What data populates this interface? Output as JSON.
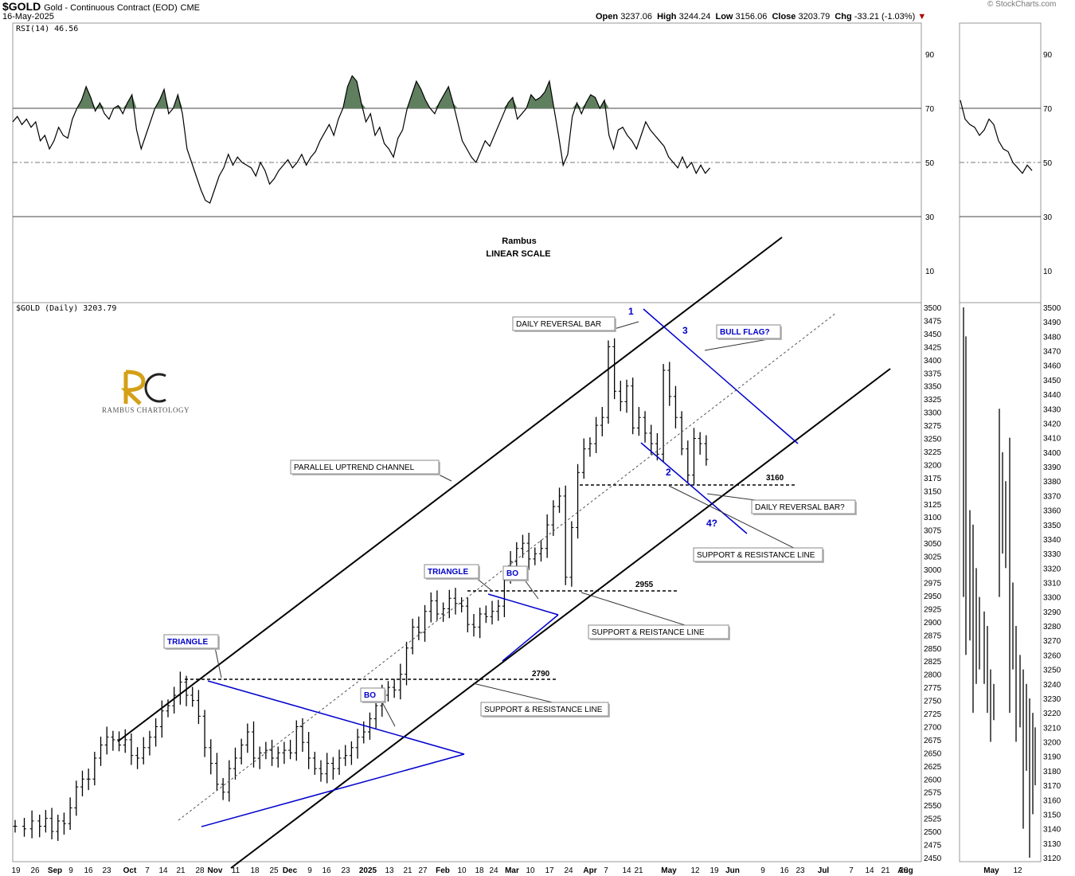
{
  "header": {
    "symbol": "$GOLD",
    "name": "Gold - Continuous Contract (EOD)",
    "exchange": "CME",
    "date": "16-May-2025",
    "open_label": "Open",
    "open": "3237.06",
    "high_label": "High",
    "high": "3244.24",
    "low_label": "Low",
    "low": "3156.06",
    "close_label": "Close",
    "close": "3203.79",
    "chg_label": "Chg",
    "chg": "-33.21 (-1.03%)",
    "credit": "© StockCharts.com"
  },
  "rsi_panel": {
    "legend": "RSI(14) 46.56",
    "ticks": [
      90,
      70,
      50,
      30,
      10
    ]
  },
  "price_panel": {
    "legend": "$GOLD (Daily) 3203.79"
  },
  "notes": {
    "author": "Rambus",
    "scale": "LINEAR SCALE"
  },
  "logo": {
    "caption": "RAMBUS CHARTOLOGY"
  },
  "chart_data": {
    "type": "ohlc",
    "main": {
      "y_ticks": [
        2450,
        2475,
        2500,
        2525,
        2550,
        2575,
        2600,
        2625,
        2650,
        2675,
        2700,
        2725,
        2750,
        2775,
        2800,
        2825,
        2850,
        2875,
        2900,
        2925,
        2950,
        2975,
        3000,
        3025,
        3050,
        3075,
        3100,
        3125,
        3150,
        3175,
        3200,
        3225,
        3250,
        3275,
        3300,
        3325,
        3350,
        3375,
        3400,
        3425,
        3450,
        3475,
        3500
      ],
      "ylim": [
        2450,
        3500
      ],
      "x_labels": [
        "19",
        "26",
        "Sep",
        "9",
        "16",
        "23",
        "Oct",
        "7",
        "14",
        "21",
        "28",
        "Nov",
        "11",
        "18",
        "25",
        "Dec",
        "9",
        "16",
        "23",
        "2025",
        "13",
        "21",
        "27",
        "Feb",
        "10",
        "18",
        "24",
        "Mar",
        "10",
        "17",
        "24",
        "Apr",
        "7",
        "14",
        "21",
        "May",
        "12",
        "19",
        "Jun",
        "9",
        "16",
        "23",
        "Jul",
        "7",
        "14",
        "21",
        "28",
        "Aug"
      ],
      "close_path": [
        [
          0,
          2510
        ],
        [
          6,
          2505
        ],
        [
          11,
          2520
        ],
        [
          16,
          2510
        ],
        [
          20,
          2525
        ],
        [
          24,
          2500
        ],
        [
          28,
          2520
        ],
        [
          32,
          2515
        ],
        [
          36,
          2545
        ],
        [
          40,
          2585
        ],
        [
          44,
          2600
        ],
        [
          48,
          2600
        ],
        [
          52,
          2640
        ],
        [
          56,
          2665
        ],
        [
          60,
          2680
        ],
        [
          64,
          2675
        ],
        [
          68,
          2665
        ],
        [
          72,
          2675
        ],
        [
          76,
          2645
        ],
        [
          80,
          2640
        ],
        [
          84,
          2660
        ],
        [
          88,
          2680
        ],
        [
          92,
          2700
        ],
        [
          96,
          2730
        ],
        [
          100,
          2740
        ],
        [
          104,
          2760
        ],
        [
          108,
          2785
        ],
        [
          112,
          2760
        ],
        [
          116,
          2750
        ],
        [
          120,
          2720
        ],
        [
          124,
          2660
        ],
        [
          128,
          2630
        ],
        [
          132,
          2590
        ],
        [
          136,
          2575
        ],
        [
          140,
          2620
        ],
        [
          144,
          2640
        ],
        [
          148,
          2665
        ],
        [
          152,
          2690
        ],
        [
          156,
          2640
        ],
        [
          160,
          2650
        ],
        [
          164,
          2655
        ],
        [
          168,
          2640
        ],
        [
          172,
          2650
        ],
        [
          176,
          2655
        ],
        [
          180,
          2650
        ],
        [
          184,
          2700
        ],
        [
          188,
          2670
        ],
        [
          192,
          2640
        ],
        [
          196,
          2620
        ],
        [
          200,
          2610
        ],
        [
          204,
          2630
        ],
        [
          208,
          2620
        ],
        [
          212,
          2640
        ],
        [
          216,
          2645
        ],
        [
          220,
          2660
        ],
        [
          224,
          2680
        ],
        [
          228,
          2690
        ],
        [
          232,
          2715
        ],
        [
          236,
          2740
        ],
        [
          240,
          2760
        ],
        [
          244,
          2775
        ],
        [
          248,
          2770
        ],
        [
          252,
          2800
        ],
        [
          256,
          2850
        ],
        [
          260,
          2890
        ],
        [
          264,
          2880
        ],
        [
          268,
          2920
        ],
        [
          272,
          2940
        ],
        [
          276,
          2915
        ],
        [
          280,
          2925
        ],
        [
          284,
          2945
        ],
        [
          288,
          2935
        ],
        [
          292,
          2930
        ],
        [
          296,
          2895
        ],
        [
          300,
          2890
        ],
        [
          304,
          2915
        ],
        [
          308,
          2910
        ],
        [
          312,
          2920
        ],
        [
          316,
          2930
        ],
        [
          320,
          2985
        ],
        [
          324,
          3015
        ],
        [
          328,
          3040
        ],
        [
          332,
          3050
        ],
        [
          336,
          3020
        ],
        [
          340,
          3030
        ],
        [
          344,
          3040
        ],
        [
          348,
          3085
        ],
        [
          352,
          3120
        ],
        [
          356,
          3140
        ],
        [
          360,
          2985
        ],
        [
          364,
          3080
        ],
        [
          368,
          3185
        ],
        [
          372,
          3230
        ],
        [
          376,
          3240
        ],
        [
          380,
          3275
        ],
        [
          384,
          3290
        ],
        [
          388,
          3425
        ],
        [
          392,
          3340
        ],
        [
          396,
          3320
        ],
        [
          400,
          3350
        ],
        [
          404,
          3270
        ],
        [
          408,
          3290
        ],
        [
          412,
          3260
        ],
        [
          416,
          3240
        ],
        [
          420,
          3220
        ],
        [
          424,
          3380
        ],
        [
          428,
          3330
        ],
        [
          432,
          3290
        ],
        [
          436,
          3230
        ],
        [
          440,
          3180
        ],
        [
          444,
          3250
        ],
        [
          448,
          3240
        ],
        [
          452,
          3210
        ]
      ],
      "annotations": [
        "DAILY REVERSAL BAR",
        "BULL FLAG?",
        "PARALLEL UPTREND CHANNEL",
        "DAILY REVERSAL BAR?",
        "SUPPORT & RESISTANCE LINE",
        "TRIANGLE",
        "BO",
        "SUPPORT & REISTANCE LINE",
        "TRIANGLE",
        "BO",
        "SUPPORT & RESISTANCE LINE"
      ],
      "level_labels": [
        "3160",
        "2955",
        "2790"
      ],
      "wave_labels": [
        "1",
        "2",
        "3",
        "4?"
      ]
    },
    "rsi": {
      "ylim": [
        0,
        100
      ],
      "levels": [
        30,
        50,
        70
      ],
      "values": [
        [
          0,
          65
        ],
        [
          3,
          67
        ],
        [
          6,
          64
        ],
        [
          9,
          66
        ],
        [
          12,
          63
        ],
        [
          15,
          65
        ],
        [
          18,
          58
        ],
        [
          21,
          60
        ],
        [
          24,
          55
        ],
        [
          27,
          58
        ],
        [
          30,
          63
        ],
        [
          33,
          60
        ],
        [
          36,
          59
        ],
        [
          39,
          66
        ],
        [
          42,
          70
        ],
        [
          45,
          73
        ],
        [
          48,
          78
        ],
        [
          51,
          74
        ],
        [
          54,
          69
        ],
        [
          57,
          72
        ],
        [
          60,
          68
        ],
        [
          63,
          66
        ],
        [
          66,
          70
        ],
        [
          69,
          71
        ],
        [
          72,
          68
        ],
        [
          75,
          72
        ],
        [
          78,
          75
        ],
        [
          81,
          62
        ],
        [
          84,
          55
        ],
        [
          87,
          60
        ],
        [
          90,
          65
        ],
        [
          93,
          70
        ],
        [
          96,
          73
        ],
        [
          99,
          77
        ],
        [
          102,
          68
        ],
        [
          105,
          70
        ],
        [
          108,
          75
        ],
        [
          111,
          68
        ],
        [
          114,
          55
        ],
        [
          117,
          50
        ],
        [
          120,
          45
        ],
        [
          123,
          40
        ],
        [
          126,
          36
        ],
        [
          129,
          35
        ],
        [
          132,
          40
        ],
        [
          135,
          45
        ],
        [
          138,
          48
        ],
        [
          141,
          53
        ],
        [
          144,
          49
        ],
        [
          147,
          52
        ],
        [
          150,
          50
        ],
        [
          153,
          49
        ],
        [
          156,
          48
        ],
        [
          159,
          45
        ],
        [
          162,
          50
        ],
        [
          165,
          47
        ],
        [
          168,
          42
        ],
        [
          171,
          44
        ],
        [
          174,
          47
        ],
        [
          177,
          49
        ],
        [
          180,
          51
        ],
        [
          183,
          48
        ],
        [
          186,
          50
        ],
        [
          189,
          53
        ],
        [
          192,
          49
        ],
        [
          195,
          52
        ],
        [
          198,
          54
        ],
        [
          201,
          58
        ],
        [
          204,
          61
        ],
        [
          207,
          64
        ],
        [
          210,
          60
        ],
        [
          213,
          66
        ],
        [
          216,
          70
        ],
        [
          219,
          78
        ],
        [
          222,
          82
        ],
        [
          225,
          80
        ],
        [
          228,
          72
        ],
        [
          231,
          65
        ],
        [
          234,
          68
        ],
        [
          237,
          60
        ],
        [
          240,
          63
        ],
        [
          243,
          57
        ],
        [
          246,
          55
        ],
        [
          249,
          52
        ],
        [
          252,
          59
        ],
        [
          255,
          62
        ],
        [
          258,
          70
        ],
        [
          261,
          75
        ],
        [
          264,
          80
        ],
        [
          267,
          77
        ],
        [
          270,
          73
        ],
        [
          273,
          70
        ],
        [
          276,
          68
        ],
        [
          279,
          72
        ],
        [
          282,
          75
        ],
        [
          285,
          78
        ],
        [
          288,
          72
        ],
        [
          291,
          65
        ],
        [
          294,
          58
        ],
        [
          297,
          55
        ],
        [
          300,
          52
        ],
        [
          303,
          50
        ],
        [
          306,
          54
        ],
        [
          309,
          58
        ],
        [
          312,
          56
        ],
        [
          315,
          60
        ],
        [
          318,
          64
        ],
        [
          321,
          68
        ],
        [
          324,
          72
        ],
        [
          327,
          74
        ],
        [
          330,
          66
        ],
        [
          333,
          68
        ],
        [
          336,
          70
        ],
        [
          339,
          75
        ],
        [
          342,
          73
        ],
        [
          345,
          74
        ],
        [
          348,
          76
        ],
        [
          351,
          80
        ],
        [
          354,
          70
        ],
        [
          357,
          60
        ],
        [
          360,
          49
        ],
        [
          363,
          53
        ],
        [
          366,
          67
        ],
        [
          369,
          72
        ],
        [
          372,
          68
        ],
        [
          375,
          72
        ],
        [
          378,
          75
        ],
        [
          381,
          74
        ],
        [
          384,
          70
        ],
        [
          387,
          73
        ],
        [
          390,
          60
        ],
        [
          393,
          55
        ],
        [
          396,
          62
        ],
        [
          399,
          63
        ],
        [
          402,
          60
        ],
        [
          405,
          58
        ],
        [
          408,
          55
        ],
        [
          411,
          60
        ],
        [
          414,
          65
        ],
        [
          417,
          62
        ],
        [
          420,
          60
        ],
        [
          423,
          58
        ],
        [
          426,
          56
        ],
        [
          429,
          52
        ],
        [
          432,
          50
        ],
        [
          435,
          48
        ],
        [
          438,
          52
        ],
        [
          441,
          48
        ],
        [
          444,
          50
        ],
        [
          447,
          46
        ],
        [
          450,
          49
        ],
        [
          453,
          46
        ],
        [
          456,
          48
        ]
      ],
      "side_values": [
        [
          0,
          73
        ],
        [
          2,
          66
        ],
        [
          4,
          64
        ],
        [
          6,
          63
        ],
        [
          8,
          60
        ],
        [
          10,
          62
        ],
        [
          12,
          66
        ],
        [
          14,
          64
        ],
        [
          16,
          58
        ],
        [
          18,
          55
        ],
        [
          20,
          54
        ],
        [
          22,
          50
        ],
        [
          24,
          48
        ],
        [
          26,
          46
        ],
        [
          28,
          49
        ],
        [
          30,
          47
        ]
      ]
    },
    "side_panel": {
      "y_ticks": [
        3120,
        3130,
        3140,
        3150,
        3160,
        3170,
        3180,
        3190,
        3200,
        3210,
        3220,
        3230,
        3240,
        3250,
        3260,
        3270,
        3280,
        3290,
        3300,
        3310,
        3320,
        3330,
        3340,
        3350,
        3360,
        3370,
        3380,
        3390,
        3400,
        3410,
        3420,
        3430,
        3440,
        3450,
        3460,
        3470,
        3480,
        3490,
        3500
      ],
      "ylim": [
        3115,
        3505
      ],
      "x_labels": [
        "May",
        "12"
      ]
    }
  }
}
